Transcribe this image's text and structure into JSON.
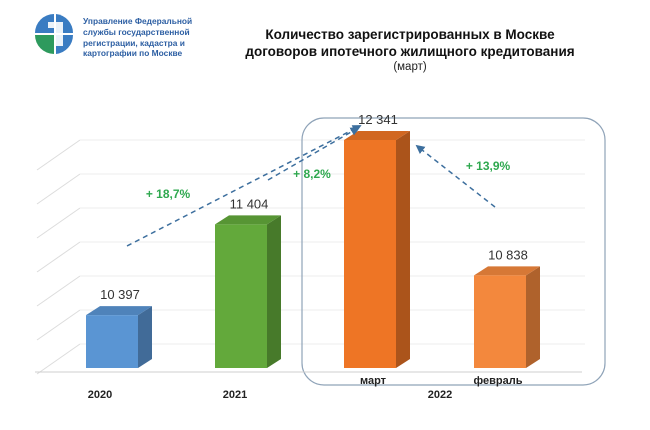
{
  "header": {
    "org_lines": [
      "Управление Федеральной",
      "службы государственной",
      "регистрации, кадастра и",
      "картографии по Москве"
    ],
    "title_lines": [
      "Количество зарегистрированных  в Москве",
      "договоров ипотечного жилищного кредитования"
    ],
    "subtitle": "(март)"
  },
  "colors": {
    "logo_blue": "#3a7cc2",
    "logo_green": "#2e9a5d",
    "pct_green": "#2fa84f",
    "arrow": "#3d6f9e"
  },
  "chart_data": {
    "type": "bar",
    "title": "Количество зарегистрированных  в Москве договоров ипотечного жилищного кредитования",
    "subtitle": "(март)",
    "categories": [
      "2020",
      "2021",
      "март",
      "февраль"
    ],
    "category_group": {
      "label": "2022",
      "members": [
        "март",
        "февраль"
      ]
    },
    "values": [
      10397,
      11404,
      12341,
      10838
    ],
    "value_labels": [
      "10 397",
      "11 404",
      "12 341",
      "10 838"
    ],
    "bar_colors": [
      "#5a95d3",
      "#63a93b",
      "#ee7525",
      "#f3883d"
    ],
    "annotations": [
      {
        "text": "+ 18,7%",
        "from": "2020",
        "to": "март"
      },
      {
        "text": "+ 8,2%",
        "from": "2021",
        "to": "март"
      },
      {
        "text": "+ 13,9%",
        "from": "февраль",
        "to": "март"
      }
    ],
    "grid": true,
    "xlabel": "",
    "ylabel": "",
    "ylim": [
      9000,
      12800
    ]
  }
}
